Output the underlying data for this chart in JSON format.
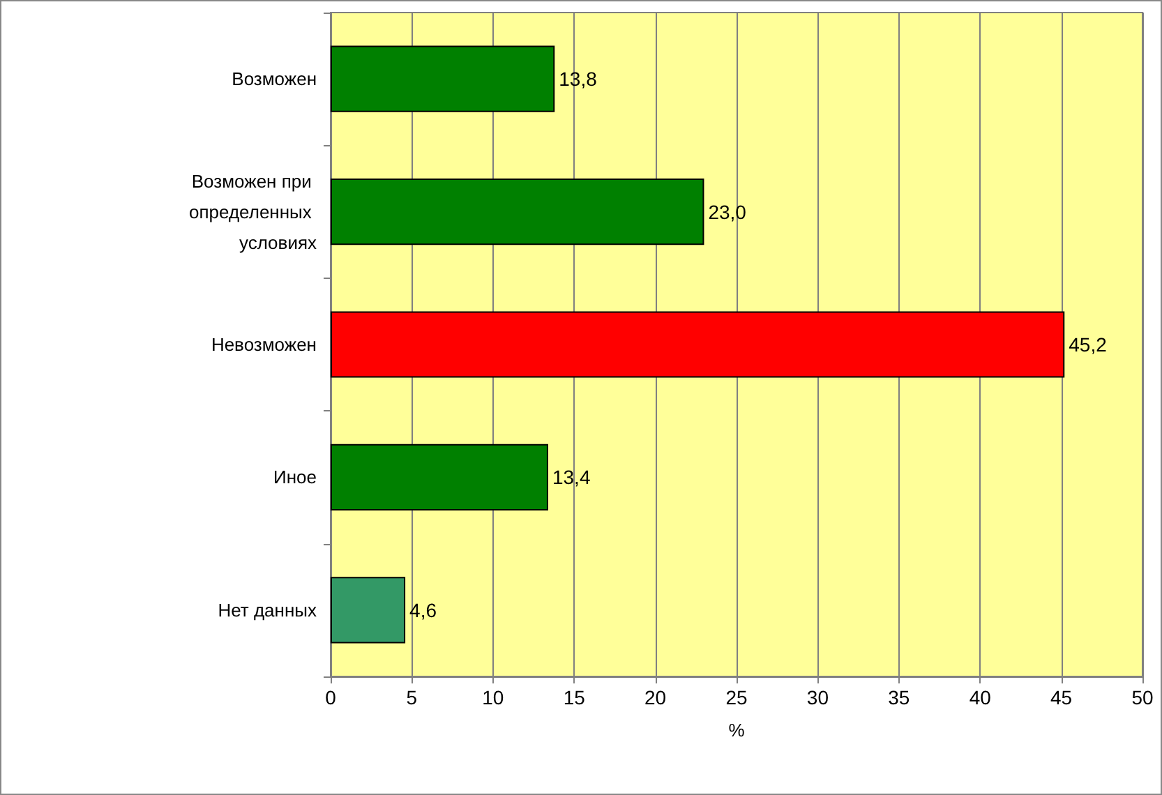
{
  "chart_data": {
    "type": "bar",
    "orientation": "horizontal",
    "xlabel": "%",
    "categories": [
      "Возможен",
      "Возможен при определенных условиях",
      "Невозможен",
      "Иное",
      "Нет данных"
    ],
    "values": [
      13.8,
      23.0,
      45.2,
      13.4,
      4.6
    ],
    "colors": [
      "#008000",
      "#008000",
      "#ff0000",
      "#008000",
      "#339966"
    ],
    "value_labels": [
      "13,8",
      "23,0",
      "45,2",
      "13,4",
      "4,6"
    ],
    "xlim": [
      0,
      50
    ],
    "xticks": [
      0,
      5,
      10,
      15,
      20,
      25,
      30,
      35,
      40,
      45,
      50
    ],
    "grid": "x"
  }
}
